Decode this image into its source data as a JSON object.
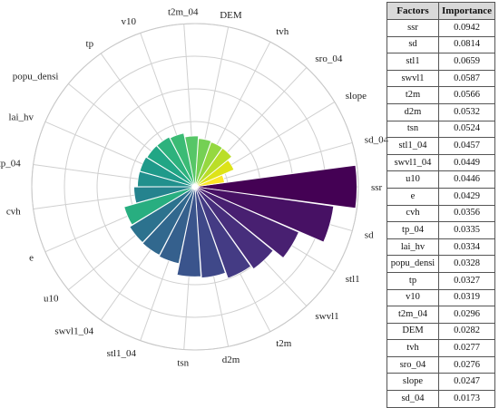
{
  "chart_data": {
    "type": "polar-bar",
    "categories": [
      "ssr",
      "sd",
      "stl1",
      "swvl1",
      "t2m",
      "d2m",
      "tsn",
      "stl1_04",
      "swvl1_04",
      "u10",
      "e",
      "cvh",
      "tp_04",
      "lai_hv",
      "popu_densi",
      "tp",
      "v10",
      "t2m_04",
      "DEM",
      "tvh",
      "sro_04",
      "slope",
      "sd_04"
    ],
    "values": [
      0.0942,
      0.0814,
      0.0659,
      0.0587,
      0.0566,
      0.0532,
      0.0524,
      0.0457,
      0.0449,
      0.0446,
      0.0429,
      0.0356,
      0.0335,
      0.0334,
      0.0328,
      0.0327,
      0.0319,
      0.0296,
      0.0282,
      0.0277,
      0.0276,
      0.0247,
      0.0173
    ],
    "colors": [
      "#440154",
      "#471164",
      "#482071",
      "#472e7c",
      "#443b84",
      "#3f4889",
      "#3a548c",
      "#35608d",
      "#31688e",
      "#2c728e",
      "#28ae80",
      "#25838e",
      "#21908d",
      "#1f9a8a",
      "#21a685",
      "#2db27d",
      "#3bbb75",
      "#56c667",
      "#75d054",
      "#95d840",
      "#bade28",
      "#dde318",
      "#fde725"
    ],
    "rmax": 0.095,
    "grid": true
  },
  "table": {
    "headers": [
      "Factors",
      "Importance"
    ],
    "rows": [
      [
        "ssr",
        "0.0942"
      ],
      [
        "sd",
        "0.0814"
      ],
      [
        "stl1",
        "0.0659"
      ],
      [
        "swvl1",
        "0.0587"
      ],
      [
        "t2m",
        "0.0566"
      ],
      [
        "d2m",
        "0.0532"
      ],
      [
        "tsn",
        "0.0524"
      ],
      [
        "stl1_04",
        "0.0457"
      ],
      [
        "swvl1_04",
        "0.0449"
      ],
      [
        "u10",
        "0.0446"
      ],
      [
        "e",
        "0.0429"
      ],
      [
        "cvh",
        "0.0356"
      ],
      [
        "tp_04",
        "0.0335"
      ],
      [
        "lai_hv",
        "0.0334"
      ],
      [
        "popu_densi",
        "0.0328"
      ],
      [
        "tp",
        "0.0327"
      ],
      [
        "v10",
        "0.0319"
      ],
      [
        "t2m_04",
        "0.0296"
      ],
      [
        "DEM",
        "0.0282"
      ],
      [
        "tvh",
        "0.0277"
      ],
      [
        "sro_04",
        "0.0276"
      ],
      [
        "slope",
        "0.0247"
      ],
      [
        "sd_04",
        "0.0173"
      ]
    ]
  }
}
